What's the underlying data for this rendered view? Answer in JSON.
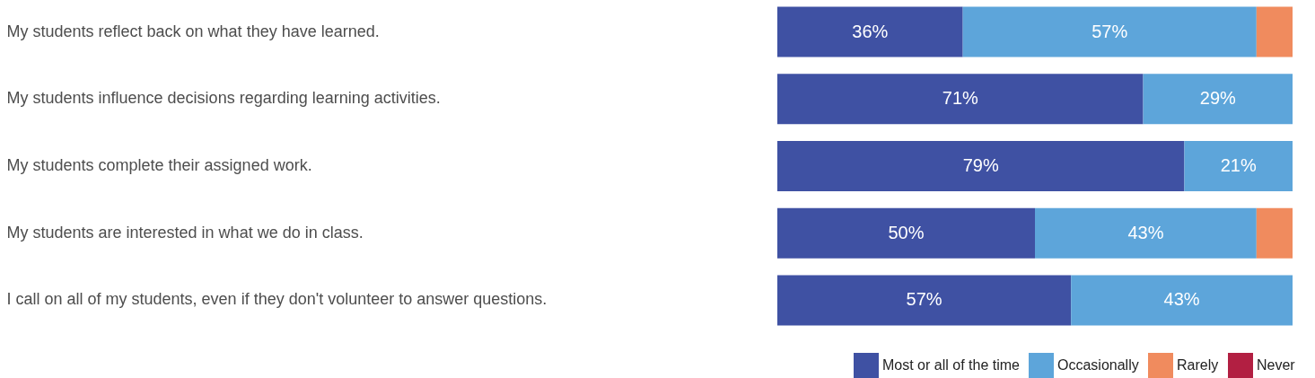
{
  "chart_data": {
    "type": "bar",
    "orientation": "horizontal",
    "stacked": true,
    "legend": "bottom right",
    "categories": [
      "My students reflect back on what they have learned.",
      "My students influence decisions regarding learning activities.",
      "My students complete their assigned work.",
      "My students are interested in what we do in class.",
      "I call on all of my students, even if they don't volunteer to answer questions."
    ],
    "series": [
      {
        "name": "Most or all of the time",
        "color": "#3f51a3",
        "values": [
          36,
          71,
          79,
          50,
          57
        ],
        "value_labels": [
          "36%",
          "71%",
          "79%",
          "50%",
          "57%"
        ]
      },
      {
        "name": "Occasionally",
        "color": "#5da5da",
        "values": [
          57,
          29,
          21,
          43,
          43
        ],
        "value_labels": [
          "57%",
          "29%",
          "21%",
          "43%",
          "43%"
        ]
      },
      {
        "name": "Rarely",
        "color": "#f08b5e",
        "values": [
          7,
          null,
          null,
          7,
          null
        ],
        "value_labels": [
          null,
          null,
          null,
          null,
          null
        ]
      },
      {
        "name": "Never",
        "color": "#b21f42",
        "values": [
          null,
          null,
          null,
          null,
          null
        ],
        "value_labels": [
          null,
          null,
          null,
          null,
          null
        ]
      }
    ]
  }
}
